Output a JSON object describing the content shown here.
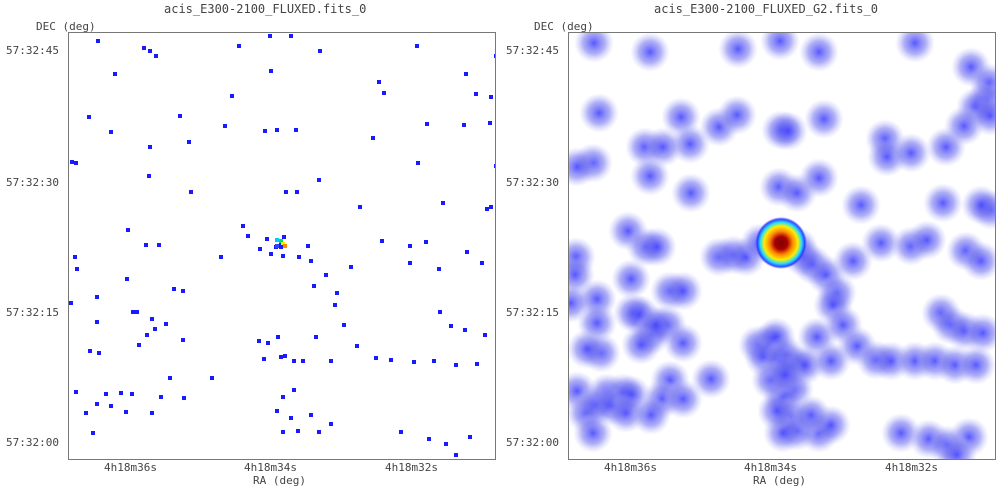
{
  "panels": [
    {
      "title": "acis_E300-2100_FLUXED.fits_0",
      "y_axis_label": "DEC (deg)",
      "x_axis_label": "RA (deg)",
      "y_ticks": [
        "57:32:45",
        "57:32:30",
        "57:32:15",
        "57:32:00"
      ],
      "x_ticks": [
        "4h18m36s",
        "4h18m34s",
        "4h18m32s"
      ]
    },
    {
      "title": "acis_E300-2100_FLUXED_G2.fits_0",
      "y_axis_label": "DEC (deg)",
      "x_axis_label": "RA (deg)",
      "y_ticks": [
        "57:32:45",
        "57:32:30",
        "57:32:15",
        "57:32:00"
      ],
      "x_ticks": [
        "4h18m36s",
        "4h18m34s",
        "4h18m32s"
      ]
    }
  ],
  "colors": {
    "event": "#1a1aff",
    "smoothed": "#5a5aee",
    "source_core": "#aa0000",
    "source_mid": "#ff8800",
    "source_ring": "#ffee00"
  }
}
